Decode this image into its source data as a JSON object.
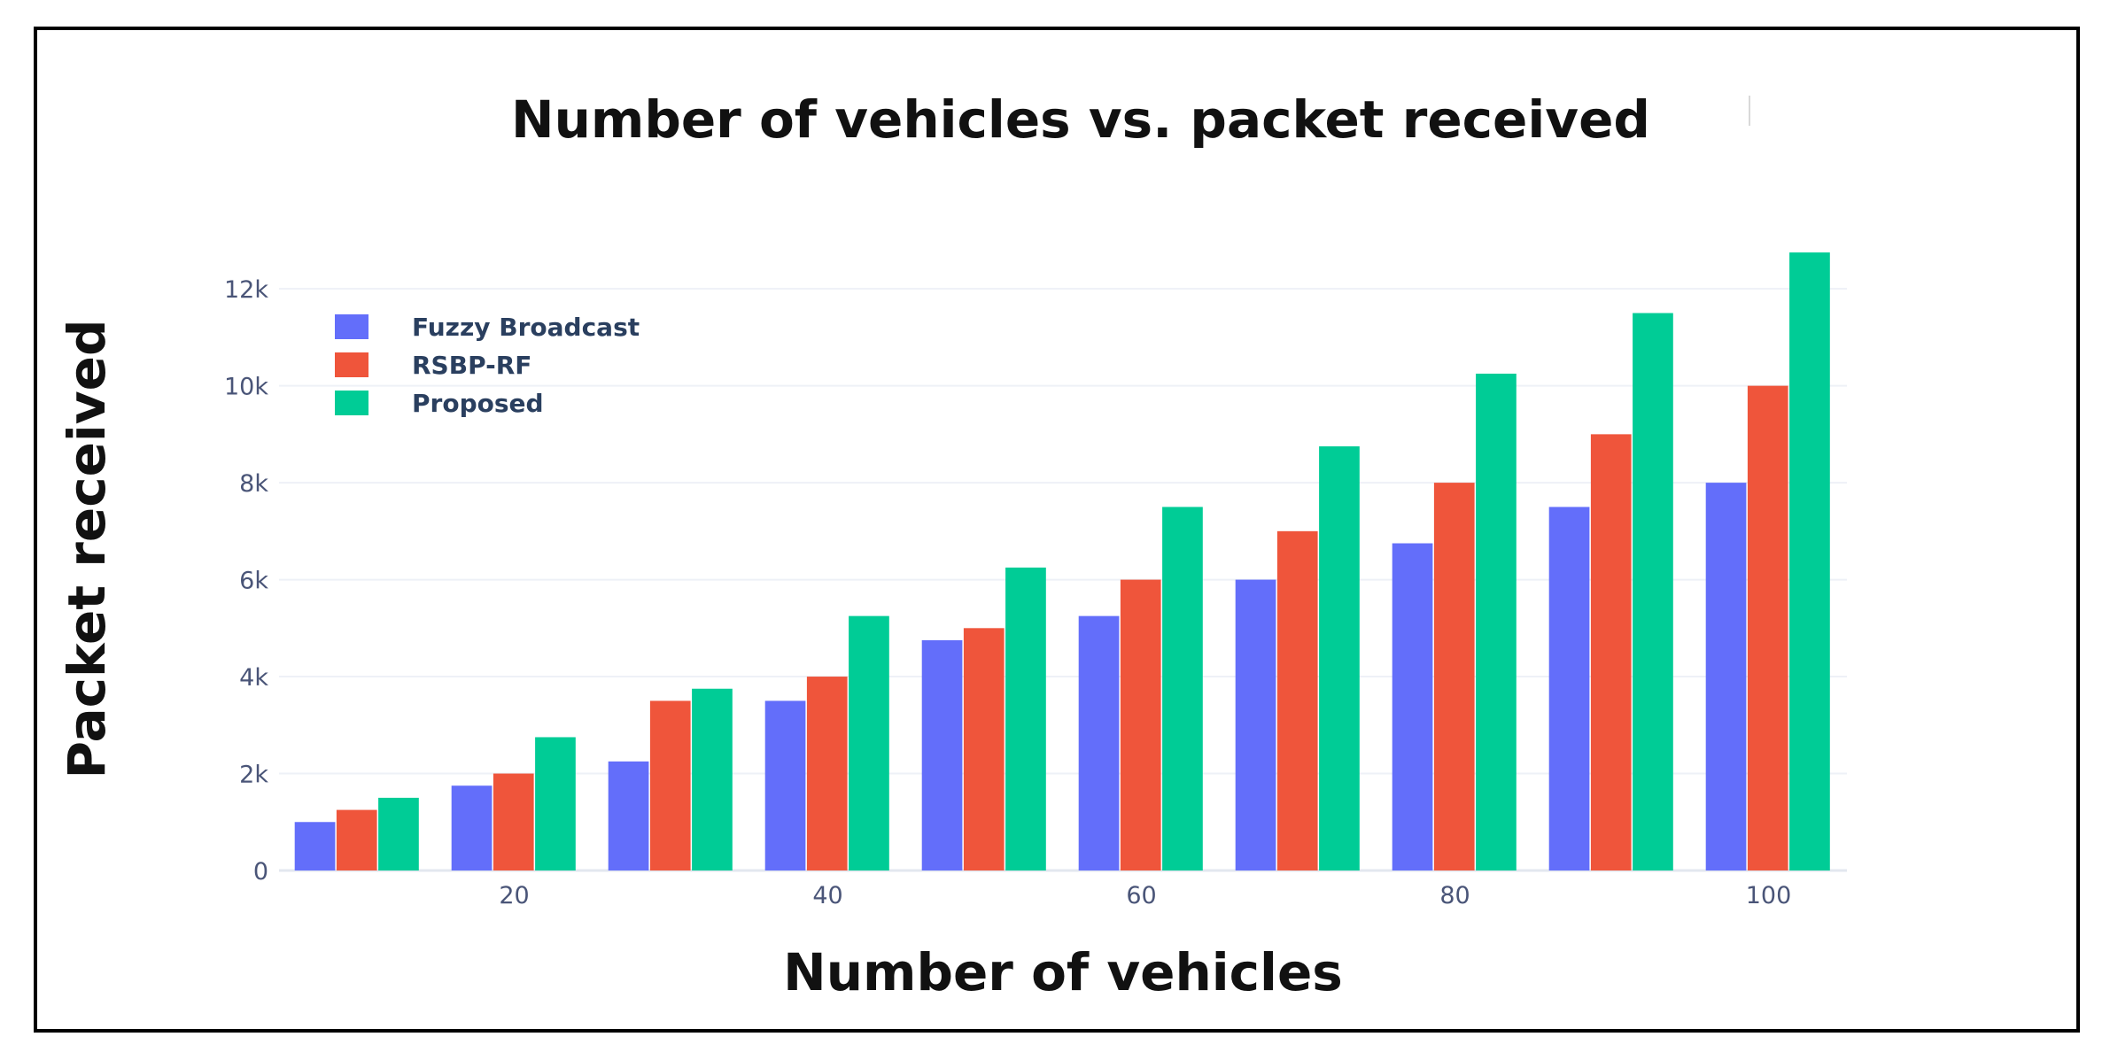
{
  "chart_data": {
    "type": "bar",
    "title": "Number of vehicles vs. packet received",
    "xlabel": "Number of vehicles",
    "ylabel": "Packet received",
    "x": [
      10,
      20,
      30,
      40,
      50,
      60,
      70,
      80,
      90,
      100
    ],
    "x_ticks": [
      20,
      40,
      60,
      80,
      100
    ],
    "x_tick_labels": [
      "20",
      "40",
      "60",
      "80",
      "100"
    ],
    "y_ticks": [
      0,
      2000,
      4000,
      6000,
      8000,
      10000,
      12000
    ],
    "y_tick_labels": [
      "0",
      "2k",
      "4k",
      "6k",
      "8k",
      "10k",
      "12k"
    ],
    "ylim": [
      0,
      13300
    ],
    "grid": true,
    "legend_position": "top-left",
    "series": [
      {
        "name": "Fuzzy Broadcast",
        "color": "#636efa",
        "values": [
          1000,
          1750,
          2250,
          3500,
          4750,
          5250,
          6000,
          6750,
          7500,
          8000
        ]
      },
      {
        "name": "RSBP-RF",
        "color": "#ef553b",
        "values": [
          1250,
          2000,
          3500,
          4000,
          5000,
          6000,
          7000,
          8000,
          9000,
          10000
        ]
      },
      {
        "name": "Proposed",
        "color": "#00cc96",
        "values": [
          1500,
          2750,
          3750,
          5250,
          6250,
          7500,
          8750,
          10250,
          11500,
          12750
        ]
      }
    ]
  }
}
